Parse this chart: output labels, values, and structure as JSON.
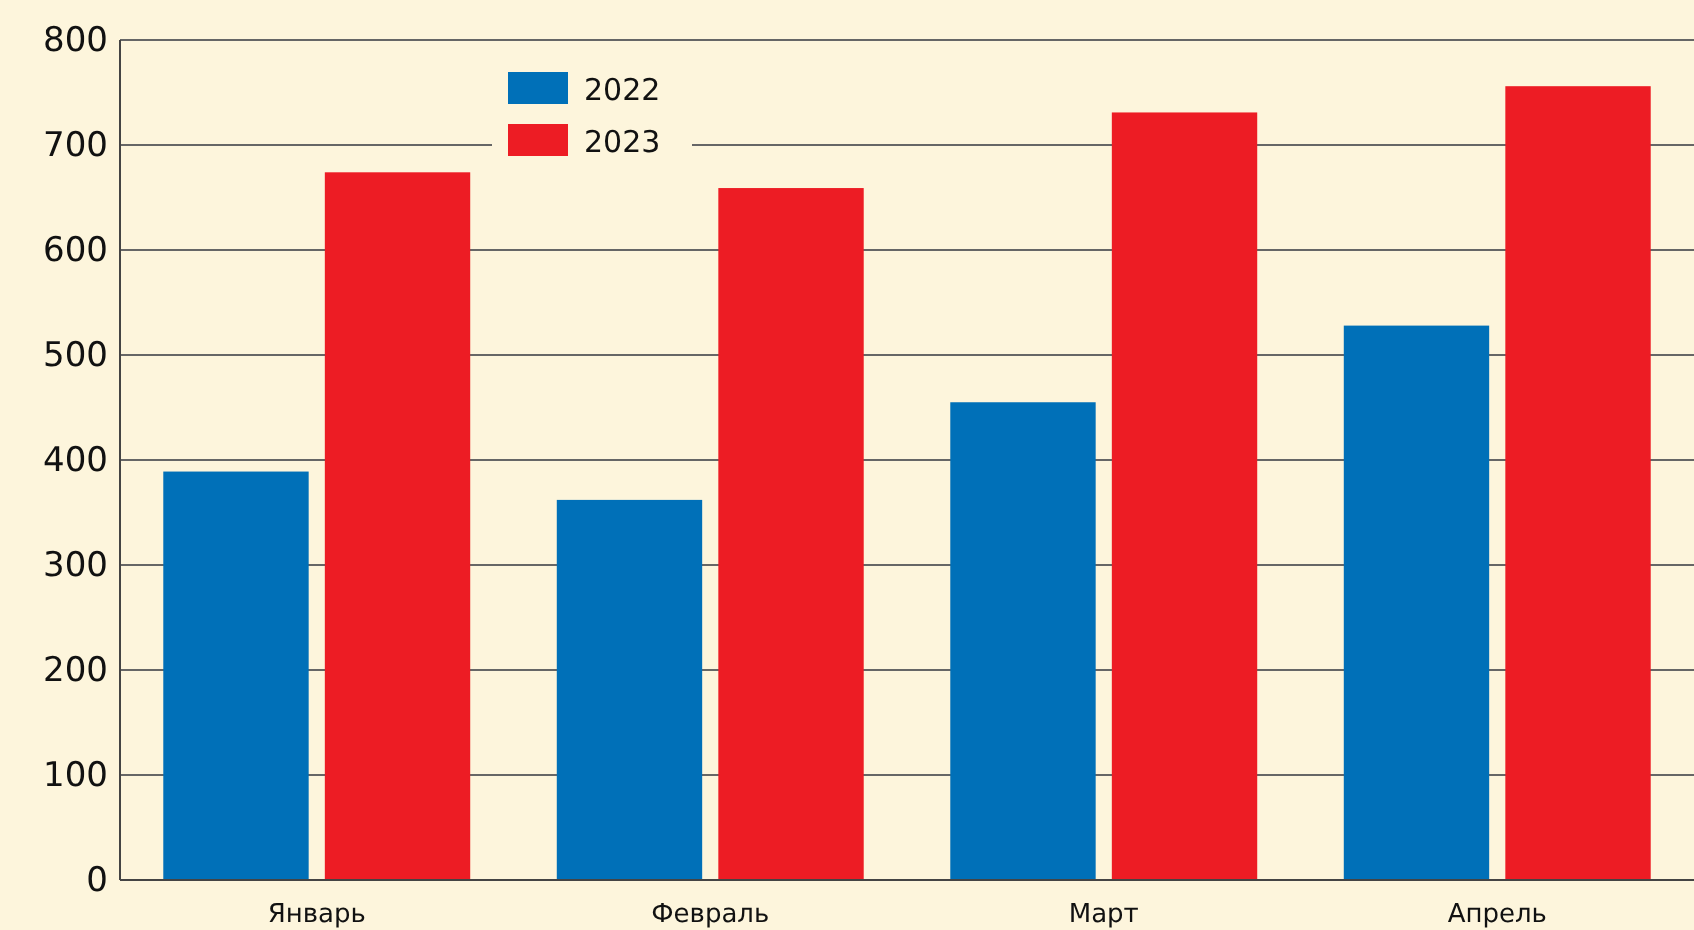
{
  "chart_data": {
    "type": "bar",
    "categories": [
      "Январь",
      "Февраль",
      "Март",
      "Апрель"
    ],
    "series": [
      {
        "name": "2022",
        "color": "#0070b8",
        "values": [
          389,
          362,
          455,
          528
        ]
      },
      {
        "name": "2023",
        "color": "#ed1c24",
        "values": [
          674,
          659,
          731,
          756
        ]
      }
    ],
    "ylim": [
      0,
      800
    ],
    "yticks": [
      0,
      100,
      200,
      300,
      400,
      500,
      600,
      700,
      800
    ],
    "grid": "y",
    "legend": "top left"
  }
}
